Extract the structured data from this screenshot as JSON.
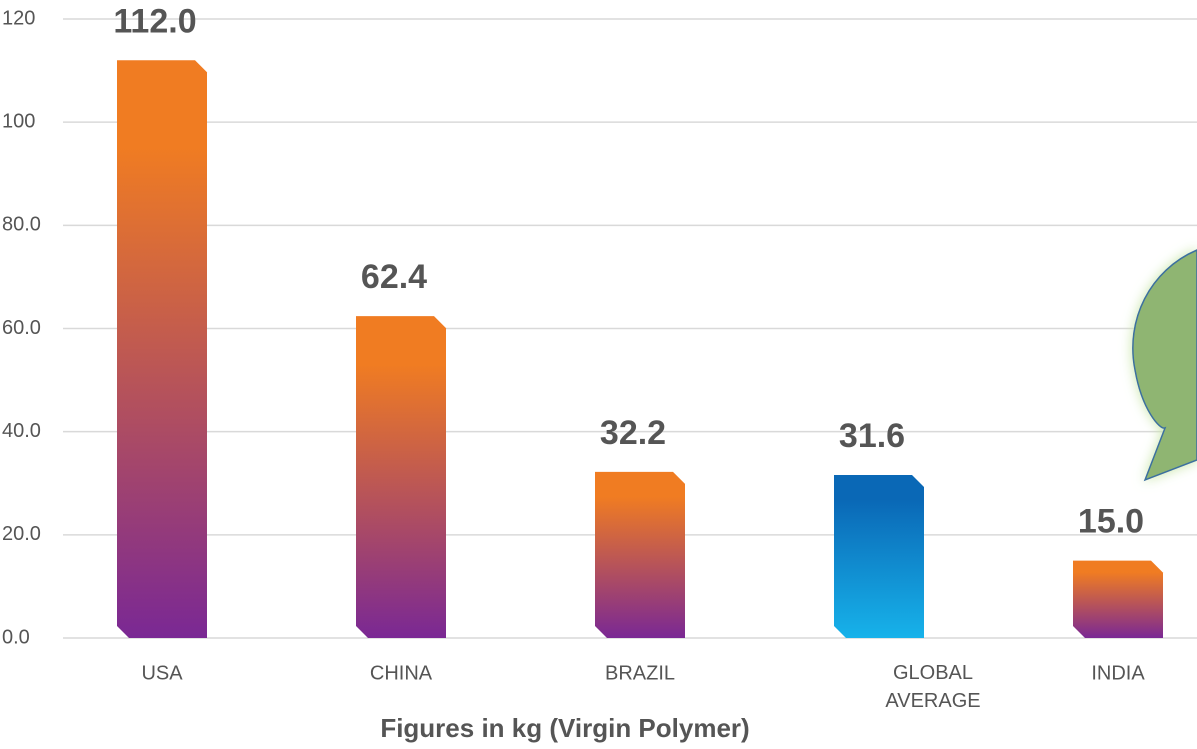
{
  "chart_data": {
    "type": "bar",
    "x_label": "Figures in kg (Virgin Polymer)",
    "categories": [
      "USA",
      "CHINA",
      "BRAZIL",
      "GLOBAL AVERAGE",
      "INDIA"
    ],
    "values": [
      112.0,
      62.4,
      32.2,
      31.6,
      15.0
    ],
    "value_labels": [
      "112.0",
      "62.4",
      "32.2",
      "31.6",
      "15.0"
    ],
    "colors": [
      [
        "#f07c22",
        "#7a2894"
      ],
      [
        "#f07c22",
        "#7a2894"
      ],
      [
        "#f07c22",
        "#7a2894"
      ],
      [
        "#0a68b6",
        "#17b2ea"
      ],
      [
        "#f07c22",
        "#7a2894"
      ]
    ],
    "ylim": [
      0,
      120
    ],
    "yticks": [
      {
        "value": 0,
        "label": "0.0"
      },
      {
        "value": 20,
        "label": "20.0"
      },
      {
        "value": 40,
        "label": "40.0"
      },
      {
        "value": 60,
        "label": "60.0"
      },
      {
        "value": 80,
        "label": "80.0"
      },
      100,
      120
    ],
    "grid": true
  }
}
